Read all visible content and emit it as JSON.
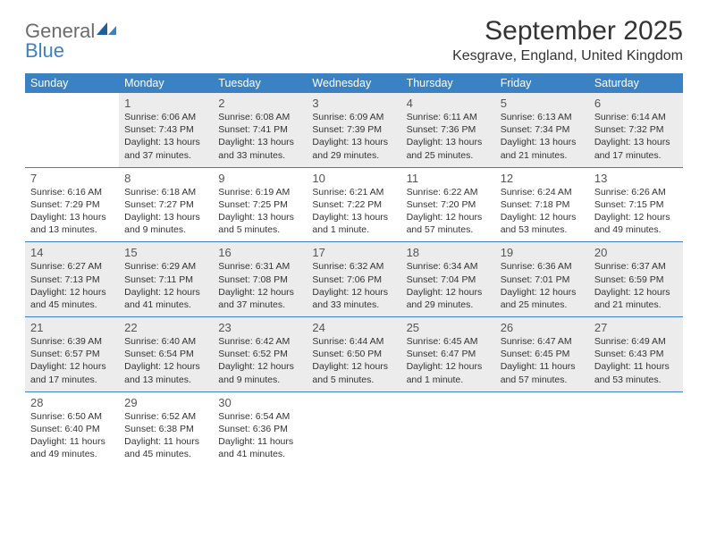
{
  "logo": {
    "text_gray": "General",
    "text_blue": "Blue"
  },
  "title": "September 2025",
  "location": "Kesgrave, England, United Kingdom",
  "colors": {
    "header_bg": "#3a82c4",
    "header_text": "#ffffff",
    "shade_bg": "#ececec",
    "text": "#333333",
    "daynum": "#555555",
    "logo_gray": "#6b6b6b",
    "logo_blue": "#3a82c4",
    "rule": "#3a82c4"
  },
  "dow": [
    "Sunday",
    "Monday",
    "Tuesday",
    "Wednesday",
    "Thursday",
    "Friday",
    "Saturday"
  ],
  "weeks": [
    [
      {
        "day": "",
        "sunrise": "",
        "sunset": "",
        "daylight": "",
        "shaded": false
      },
      {
        "day": "1",
        "sunrise": "Sunrise: 6:06 AM",
        "sunset": "Sunset: 7:43 PM",
        "daylight": "Daylight: 13 hours and 37 minutes.",
        "shaded": true
      },
      {
        "day": "2",
        "sunrise": "Sunrise: 6:08 AM",
        "sunset": "Sunset: 7:41 PM",
        "daylight": "Daylight: 13 hours and 33 minutes.",
        "shaded": true
      },
      {
        "day": "3",
        "sunrise": "Sunrise: 6:09 AM",
        "sunset": "Sunset: 7:39 PM",
        "daylight": "Daylight: 13 hours and 29 minutes.",
        "shaded": true
      },
      {
        "day": "4",
        "sunrise": "Sunrise: 6:11 AM",
        "sunset": "Sunset: 7:36 PM",
        "daylight": "Daylight: 13 hours and 25 minutes.",
        "shaded": true
      },
      {
        "day": "5",
        "sunrise": "Sunrise: 6:13 AM",
        "sunset": "Sunset: 7:34 PM",
        "daylight": "Daylight: 13 hours and 21 minutes.",
        "shaded": true
      },
      {
        "day": "6",
        "sunrise": "Sunrise: 6:14 AM",
        "sunset": "Sunset: 7:32 PM",
        "daylight": "Daylight: 13 hours and 17 minutes.",
        "shaded": true
      }
    ],
    [
      {
        "day": "7",
        "sunrise": "Sunrise: 6:16 AM",
        "sunset": "Sunset: 7:29 PM",
        "daylight": "Daylight: 13 hours and 13 minutes.",
        "shaded": false
      },
      {
        "day": "8",
        "sunrise": "Sunrise: 6:18 AM",
        "sunset": "Sunset: 7:27 PM",
        "daylight": "Daylight: 13 hours and 9 minutes.",
        "shaded": false
      },
      {
        "day": "9",
        "sunrise": "Sunrise: 6:19 AM",
        "sunset": "Sunset: 7:25 PM",
        "daylight": "Daylight: 13 hours and 5 minutes.",
        "shaded": false
      },
      {
        "day": "10",
        "sunrise": "Sunrise: 6:21 AM",
        "sunset": "Sunset: 7:22 PM",
        "daylight": "Daylight: 13 hours and 1 minute.",
        "shaded": false
      },
      {
        "day": "11",
        "sunrise": "Sunrise: 6:22 AM",
        "sunset": "Sunset: 7:20 PM",
        "daylight": "Daylight: 12 hours and 57 minutes.",
        "shaded": false
      },
      {
        "day": "12",
        "sunrise": "Sunrise: 6:24 AM",
        "sunset": "Sunset: 7:18 PM",
        "daylight": "Daylight: 12 hours and 53 minutes.",
        "shaded": false
      },
      {
        "day": "13",
        "sunrise": "Sunrise: 6:26 AM",
        "sunset": "Sunset: 7:15 PM",
        "daylight": "Daylight: 12 hours and 49 minutes.",
        "shaded": false
      }
    ],
    [
      {
        "day": "14",
        "sunrise": "Sunrise: 6:27 AM",
        "sunset": "Sunset: 7:13 PM",
        "daylight": "Daylight: 12 hours and 45 minutes.",
        "shaded": true
      },
      {
        "day": "15",
        "sunrise": "Sunrise: 6:29 AM",
        "sunset": "Sunset: 7:11 PM",
        "daylight": "Daylight: 12 hours and 41 minutes.",
        "shaded": true
      },
      {
        "day": "16",
        "sunrise": "Sunrise: 6:31 AM",
        "sunset": "Sunset: 7:08 PM",
        "daylight": "Daylight: 12 hours and 37 minutes.",
        "shaded": true
      },
      {
        "day": "17",
        "sunrise": "Sunrise: 6:32 AM",
        "sunset": "Sunset: 7:06 PM",
        "daylight": "Daylight: 12 hours and 33 minutes.",
        "shaded": true
      },
      {
        "day": "18",
        "sunrise": "Sunrise: 6:34 AM",
        "sunset": "Sunset: 7:04 PM",
        "daylight": "Daylight: 12 hours and 29 minutes.",
        "shaded": true
      },
      {
        "day": "19",
        "sunrise": "Sunrise: 6:36 AM",
        "sunset": "Sunset: 7:01 PM",
        "daylight": "Daylight: 12 hours and 25 minutes.",
        "shaded": true
      },
      {
        "day": "20",
        "sunrise": "Sunrise: 6:37 AM",
        "sunset": "Sunset: 6:59 PM",
        "daylight": "Daylight: 12 hours and 21 minutes.",
        "shaded": true
      }
    ],
    [
      {
        "day": "21",
        "sunrise": "Sunrise: 6:39 AM",
        "sunset": "Sunset: 6:57 PM",
        "daylight": "Daylight: 12 hours and 17 minutes.",
        "shaded": true
      },
      {
        "day": "22",
        "sunrise": "Sunrise: 6:40 AM",
        "sunset": "Sunset: 6:54 PM",
        "daylight": "Daylight: 12 hours and 13 minutes.",
        "shaded": true
      },
      {
        "day": "23",
        "sunrise": "Sunrise: 6:42 AM",
        "sunset": "Sunset: 6:52 PM",
        "daylight": "Daylight: 12 hours and 9 minutes.",
        "shaded": true
      },
      {
        "day": "24",
        "sunrise": "Sunrise: 6:44 AM",
        "sunset": "Sunset: 6:50 PM",
        "daylight": "Daylight: 12 hours and 5 minutes.",
        "shaded": true
      },
      {
        "day": "25",
        "sunrise": "Sunrise: 6:45 AM",
        "sunset": "Sunset: 6:47 PM",
        "daylight": "Daylight: 12 hours and 1 minute.",
        "shaded": true
      },
      {
        "day": "26",
        "sunrise": "Sunrise: 6:47 AM",
        "sunset": "Sunset: 6:45 PM",
        "daylight": "Daylight: 11 hours and 57 minutes.",
        "shaded": true
      },
      {
        "day": "27",
        "sunrise": "Sunrise: 6:49 AM",
        "sunset": "Sunset: 6:43 PM",
        "daylight": "Daylight: 11 hours and 53 minutes.",
        "shaded": true
      }
    ],
    [
      {
        "day": "28",
        "sunrise": "Sunrise: 6:50 AM",
        "sunset": "Sunset: 6:40 PM",
        "daylight": "Daylight: 11 hours and 49 minutes.",
        "shaded": false
      },
      {
        "day": "29",
        "sunrise": "Sunrise: 6:52 AM",
        "sunset": "Sunset: 6:38 PM",
        "daylight": "Daylight: 11 hours and 45 minutes.",
        "shaded": false
      },
      {
        "day": "30",
        "sunrise": "Sunrise: 6:54 AM",
        "sunset": "Sunset: 6:36 PM",
        "daylight": "Daylight: 11 hours and 41 minutes.",
        "shaded": false
      },
      {
        "day": "",
        "sunrise": "",
        "sunset": "",
        "daylight": "",
        "shaded": false
      },
      {
        "day": "",
        "sunrise": "",
        "sunset": "",
        "daylight": "",
        "shaded": false
      },
      {
        "day": "",
        "sunrise": "",
        "sunset": "",
        "daylight": "",
        "shaded": false
      },
      {
        "day": "",
        "sunrise": "",
        "sunset": "",
        "daylight": "",
        "shaded": false
      }
    ]
  ]
}
